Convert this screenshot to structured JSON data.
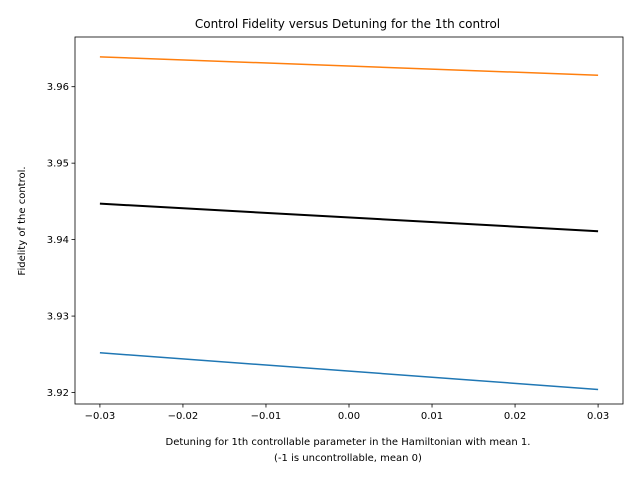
{
  "chart_data": {
    "type": "line",
    "title": "Control Fidelity versus Detuning for the 1th control",
    "xlabel_lines": [
      "Detuning for 1th controllable parameter in the Hamiltonian with mean 1.",
      "(-1 is uncontrollable, mean 0)"
    ],
    "ylabel": "Fidelity of the control.",
    "xlim": [
      -0.033,
      0.033
    ],
    "ylim": [
      3.9185,
      3.9665
    ],
    "xticks": [
      -0.03,
      -0.02,
      -0.01,
      0.0,
      0.01,
      0.02,
      0.03
    ],
    "xtick_labels": [
      "−0.03",
      "−0.02",
      "−0.01",
      "0.00",
      "0.01",
      "0.02",
      "0.03"
    ],
    "yticks": [
      3.92,
      3.93,
      3.94,
      3.95,
      3.96
    ],
    "ytick_labels": [
      "3.92",
      "3.93",
      "3.94",
      "3.95",
      "3.96"
    ],
    "grid": false,
    "legend": false,
    "series": [
      {
        "color": "#1f77b4",
        "width": 1.5,
        "x": [
          -0.03,
          0.03
        ],
        "y": [
          3.9252,
          3.9204
        ]
      },
      {
        "color": "#ff7f0e",
        "width": 1.5,
        "x": [
          -0.03,
          0.03
        ],
        "y": [
          3.9639,
          3.9615
        ]
      },
      {
        "color": "#000000",
        "width": 2,
        "x": [
          -0.03,
          0.03
        ],
        "y": [
          3.9447,
          3.9411
        ]
      }
    ]
  }
}
